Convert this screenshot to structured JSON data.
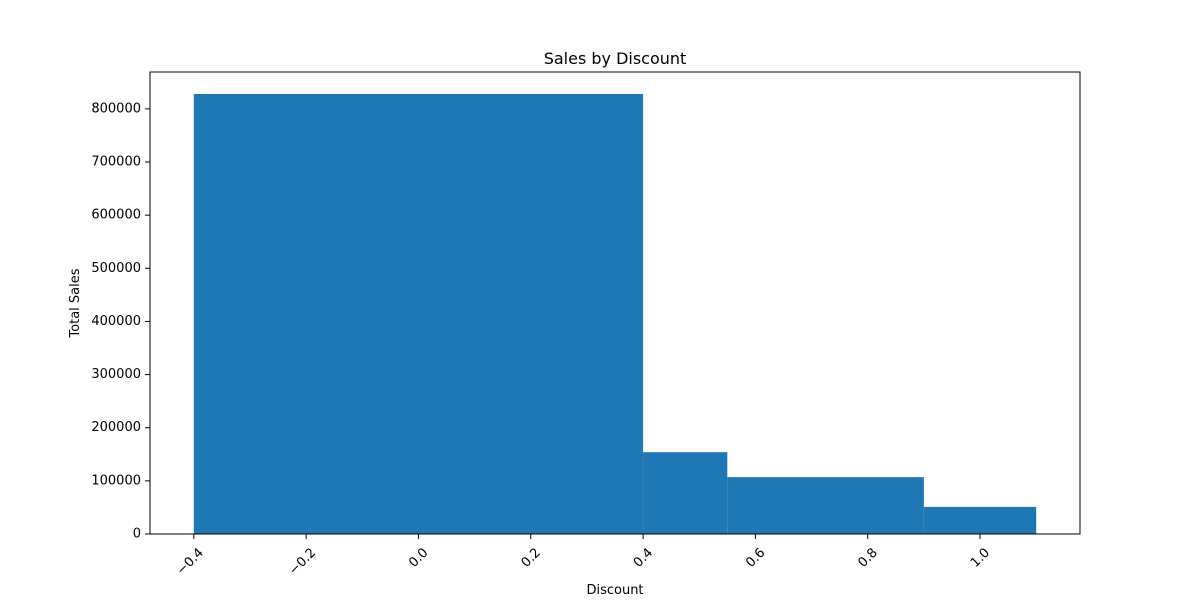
{
  "chart_data": {
    "type": "bar",
    "title": "Sales by Discount",
    "xlabel": "Discount",
    "ylabel": "Total Sales",
    "bars": [
      {
        "x_start": -0.4,
        "x_end": 0.4,
        "value": 828000
      },
      {
        "x_start": 0.4,
        "x_end": 0.55,
        "value": 154000
      },
      {
        "x_start": 0.55,
        "x_end": 0.9,
        "value": 107000
      },
      {
        "x_start": 0.9,
        "x_end": 1.1,
        "value": 51000
      }
    ],
    "xlim": [
      -0.478,
      1.178
    ],
    "ylim": [
      0,
      869400
    ],
    "x_ticks": [
      -0.4,
      -0.2,
      0.0,
      0.2,
      0.4,
      0.6,
      0.8,
      1.0
    ],
    "x_tick_labels": [
      "−0.4",
      "−0.2",
      "0.0",
      "0.2",
      "0.4",
      "0.6",
      "0.8",
      "1.0"
    ],
    "y_ticks": [
      0,
      100000,
      200000,
      300000,
      400000,
      500000,
      600000,
      700000,
      800000
    ],
    "y_tick_labels": [
      "0",
      "100000",
      "200000",
      "300000",
      "400000",
      "500000",
      "600000",
      "700000",
      "800000"
    ],
    "bar_color": "#1f77b4",
    "grid": false
  }
}
